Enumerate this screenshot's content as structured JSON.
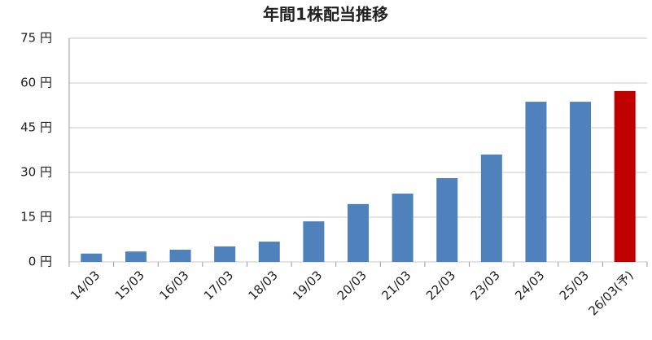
{
  "chart_data": {
    "type": "bar",
    "title": "年間1株配当推移",
    "categories": [
      "14/03",
      "15/03",
      "16/03",
      "17/03",
      "18/03",
      "19/03",
      "20/03",
      "21/03",
      "22/03",
      "23/03",
      "24/03",
      "25/03",
      "26/03(予)"
    ],
    "values": [
      2.8,
      3.5,
      4.1,
      5.2,
      6.8,
      13.6,
      19.4,
      22.9,
      28.1,
      36,
      53.7,
      53.7,
      57.3
    ],
    "colors": [
      "#4f81bd",
      "#4f81bd",
      "#4f81bd",
      "#4f81bd",
      "#4f81bd",
      "#4f81bd",
      "#4f81bd",
      "#4f81bd",
      "#4f81bd",
      "#4f81bd",
      "#4f81bd",
      "#4f81bd",
      "#c00000"
    ],
    "ylim": [
      0,
      75
    ],
    "yticks": [
      {
        "value": 0,
        "label": "0 円"
      },
      {
        "value": 15,
        "label": "15 円"
      },
      {
        "value": 30,
        "label": "30 円"
      },
      {
        "value": 45,
        "label": "45 円"
      },
      {
        "value": 60,
        "label": "60 円"
      },
      {
        "value": 75,
        "label": "75 円"
      }
    ],
    "grid": true
  }
}
